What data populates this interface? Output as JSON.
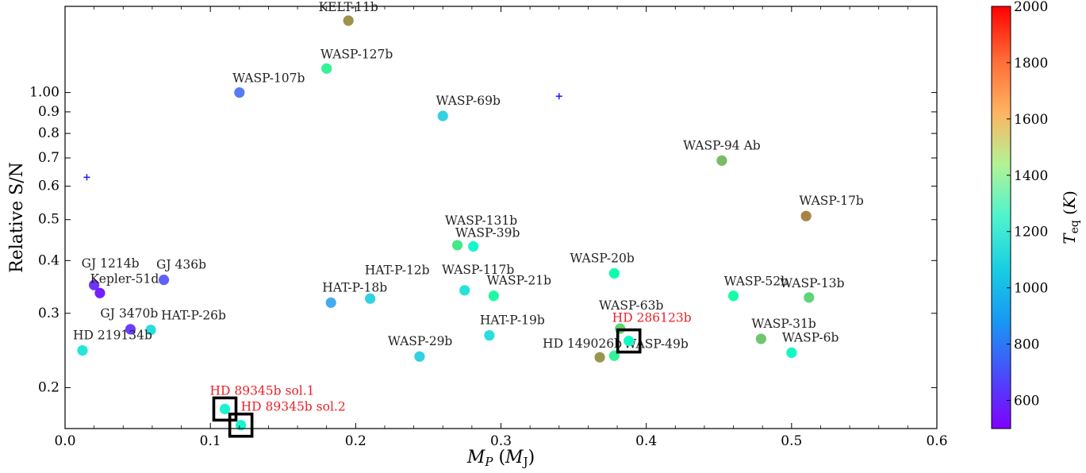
{
  "chart_data": {
    "type": "scatter",
    "xlabel": "M_P (M_J)",
    "ylabel": "Relative S/N",
    "xlim": [
      0.0,
      0.6
    ],
    "ylim": [
      0.16,
      1.6
    ],
    "y_scale": "log",
    "x_ticks": [
      "0.0",
      "0.1",
      "0.2",
      "0.3",
      "0.4",
      "0.5",
      "0.6"
    ],
    "y_ticks": [
      "0.2",
      "0.3",
      "0.4",
      "0.5",
      "0.6",
      "0.7",
      "0.8",
      "0.9",
      "1.00"
    ],
    "colorbar": {
      "label": "T_eq (K)",
      "range": [
        500,
        2000
      ],
      "ticks": [
        "600",
        "800",
        "1000",
        "1200",
        "1400",
        "1600",
        "1800",
        "2000"
      ],
      "colormap": "rainbow"
    },
    "points": [
      {
        "name": "KELT-11b",
        "x": 0.195,
        "y": 1.48,
        "teq": 1712
      },
      {
        "name": "WASP-127b",
        "x": 0.18,
        "y": 1.14,
        "teq": 1400
      },
      {
        "name": "WASP-107b",
        "x": 0.12,
        "y": 1.0,
        "teq": 740
      },
      {
        "name": "WASP-69b",
        "x": 0.26,
        "y": 0.88,
        "teq": 963
      },
      {
        "name": "WASP-94 Ab",
        "x": 0.452,
        "y": 0.69,
        "teq": 1604
      },
      {
        "name": "WASP-17b",
        "x": 0.51,
        "y": 0.51,
        "teq": 1740
      },
      {
        "name": "WASP-131b",
        "x": 0.27,
        "y": 0.435,
        "teq": 1460
      },
      {
        "name": "WASP-39b",
        "x": 0.281,
        "y": 0.432,
        "teq": 1116
      },
      {
        "name": "GJ 436b",
        "x": 0.068,
        "y": 0.36,
        "teq": 686
      },
      {
        "name": "GJ 1214b",
        "x": 0.02,
        "y": 0.35,
        "teq": 596
      },
      {
        "name": "Kepler-51d",
        "x": 0.024,
        "y": 0.335,
        "teq": 560
      },
      {
        "name": "HAT-P-18b",
        "x": 0.183,
        "y": 0.318,
        "teq": 850
      },
      {
        "name": "HAT-P-12b",
        "x": 0.21,
        "y": 0.325,
        "teq": 960
      },
      {
        "name": "WASP-117b",
        "x": 0.275,
        "y": 0.34,
        "teq": 1025
      },
      {
        "name": "WASP-21b",
        "x": 0.295,
        "y": 0.33,
        "teq": 1333
      },
      {
        "name": "WASP-20b",
        "x": 0.378,
        "y": 0.373,
        "teq": 1282
      },
      {
        "name": "WASP-52b",
        "x": 0.46,
        "y": 0.33,
        "teq": 1315
      },
      {
        "name": "WASP-13b",
        "x": 0.512,
        "y": 0.327,
        "teq": 1528
      },
      {
        "name": "GJ 3470b",
        "x": 0.045,
        "y": 0.275,
        "teq": 615
      },
      {
        "name": "HAT-P-26b",
        "x": 0.059,
        "y": 0.274,
        "teq": 1001
      },
      {
        "name": "HD 219134b",
        "x": 0.012,
        "y": 0.245,
        "teq": 1036
      },
      {
        "name": "HAT-P-19b",
        "x": 0.292,
        "y": 0.266,
        "teq": 1010
      },
      {
        "name": "WASP-63b",
        "x": 0.382,
        "y": 0.276,
        "teq": 1536
      },
      {
        "name": "WASP-31b",
        "x": 0.479,
        "y": 0.261,
        "teq": 1575
      },
      {
        "name": "WASP-29b",
        "x": 0.244,
        "y": 0.237,
        "teq": 963
      },
      {
        "name": "HD 149026b",
        "x": 0.368,
        "y": 0.236,
        "teq": 1700
      },
      {
        "name": "WASP-49b",
        "x": 0.378,
        "y": 0.238,
        "teq": 1400
      },
      {
        "name": "WASP-6b",
        "x": 0.5,
        "y": 0.242,
        "teq": 1150
      },
      {
        "name": "HD 286123b",
        "x": 0.388,
        "y": 0.258,
        "teq": 1152,
        "highlight": true
      },
      {
        "name": "HD 89345b sol.1",
        "x": 0.11,
        "y": 0.178,
        "teq": 1100,
        "highlight": true
      },
      {
        "name": "HD 89345b sol.2",
        "x": 0.121,
        "y": 0.163,
        "teq": 1100,
        "highlight": true
      }
    ],
    "crosses": [
      {
        "x": 0.015,
        "y": 0.63
      },
      {
        "x": 0.34,
        "y": 0.98
      }
    ]
  }
}
